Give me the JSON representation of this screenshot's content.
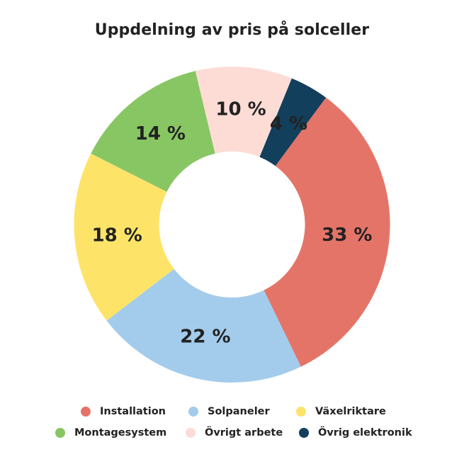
{
  "chart_data": {
    "type": "pie",
    "style": "donut",
    "title": "Uppdelning av pris på solceller",
    "categories": [
      "Installation",
      "Solpaneler",
      "Växelriktare",
      "Montagesystem",
      "Övrigt arbete",
      "Övrig elektronik"
    ],
    "values": [
      33,
      22,
      18,
      14,
      10,
      4
    ],
    "value_labels": [
      "33 %",
      "22 %",
      "18 %",
      "14 %",
      "10 %",
      "4 %"
    ],
    "unit": "%",
    "colors": [
      "#e57468",
      "#a3ccec",
      "#fde468",
      "#88c663",
      "#fddcd6",
      "#123f5b"
    ],
    "label_colors": [
      "#222222",
      "#222222",
      "#222222",
      "#222222",
      "#222222",
      "#222222"
    ],
    "legend_position": "bottom"
  }
}
